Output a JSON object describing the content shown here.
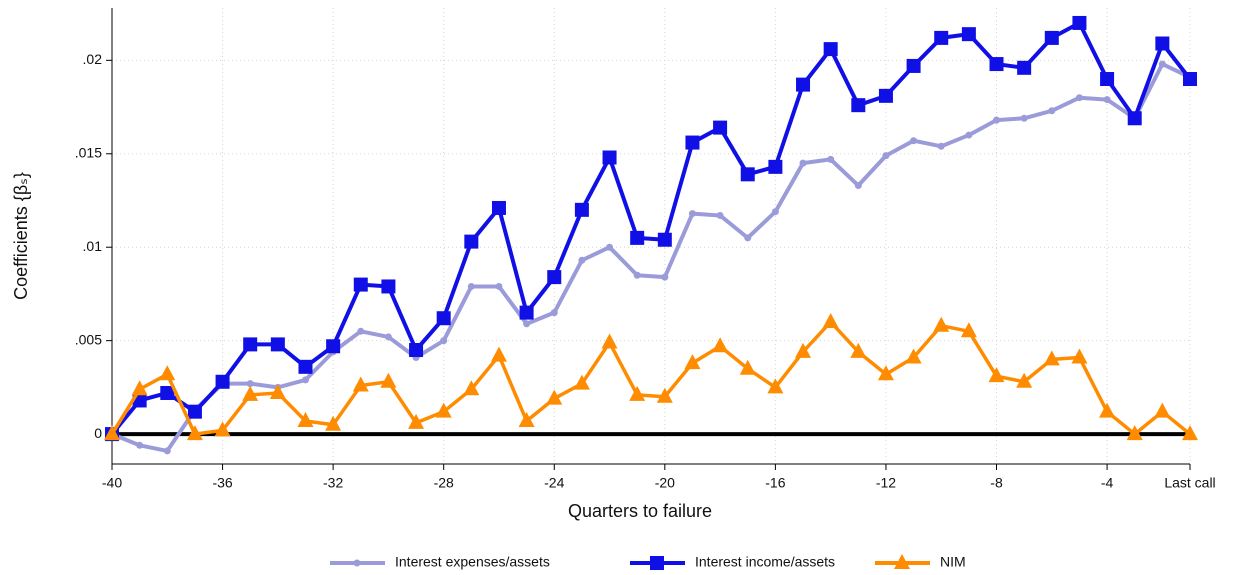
{
  "chart_data": {
    "type": "line",
    "xlabel": "Quarters to failure",
    "ylabel": "Coefficients {βₛ}",
    "x": [
      -40,
      -39,
      -38,
      -37,
      -36,
      -35,
      -34,
      -33,
      -32,
      -31,
      -30,
      -29,
      -28,
      -27,
      -26,
      -25,
      -24,
      -23,
      -22,
      -21,
      -20,
      -19,
      -18,
      -17,
      -16,
      -15,
      -14,
      -13,
      -12,
      -11,
      -10,
      -9,
      -8,
      -7,
      -6,
      -5,
      -4,
      -3,
      -2,
      -1
    ],
    "xlim": [
      -40,
      -1
    ],
    "xticks": [
      -40,
      -36,
      -32,
      -28,
      -24,
      -20,
      -16,
      -12,
      -8,
      -4,
      {
        "value": -1,
        "label": "Last call"
      }
    ],
    "ylim": [
      -0.0016,
      0.0228
    ],
    "yticks": [
      0,
      {
        "value": 0.005,
        "label": ".005"
      },
      {
        "value": 0.01,
        "label": ".01"
      },
      {
        "value": 0.015,
        "label": ".015"
      },
      {
        "value": 0.02,
        "label": ".02"
      }
    ],
    "grid": true,
    "legend": "bottom",
    "series": [
      {
        "name": "Interest expenses/assets",
        "color": "#9b9bd9",
        "marker": "circle",
        "values": [
          0,
          -0.0006,
          -0.0009,
          0.0013,
          0.0027,
          0.0027,
          0.0025,
          0.0029,
          0.0044,
          0.0055,
          0.0052,
          0.0041,
          0.005,
          0.0079,
          0.0079,
          0.0059,
          0.0065,
          0.0093,
          0.01,
          0.0085,
          0.0084,
          0.0118,
          0.0117,
          0.0105,
          0.0119,
          0.0145,
          0.0147,
          0.0133,
          0.0149,
          0.0157,
          0.0154,
          0.016,
          0.0168,
          0.0169,
          0.0173,
          0.018,
          0.0179,
          0.0169,
          0.0198,
          0.0191
        ]
      },
      {
        "name": "Interest income/assets",
        "color": "#1010e6",
        "marker": "square",
        "values": [
          0,
          0.0018,
          0.0022,
          0.0012,
          0.0028,
          0.0048,
          0.0048,
          0.0036,
          0.0047,
          0.008,
          0.0079,
          0.0045,
          0.0062,
          0.0103,
          0.0121,
          0.0065,
          0.0084,
          0.012,
          0.0148,
          0.0105,
          0.0104,
          0.0156,
          0.0164,
          0.0139,
          0.0143,
          0.0187,
          0.0206,
          0.0176,
          0.0181,
          0.0197,
          0.0212,
          0.0214,
          0.0198,
          0.0196,
          0.0212,
          0.022,
          0.019,
          0.0169,
          0.0209,
          0.019
        ]
      },
      {
        "name": "NIM",
        "color": "#ff8c00",
        "marker": "triangle",
        "values": [
          0,
          0.0024,
          0.0032,
          0,
          0.0002,
          0.0021,
          0.0022,
          0.0007,
          0.0005,
          0.0026,
          0.0028,
          0.0006,
          0.0012,
          0.0024,
          0.0042,
          0.0007,
          0.0019,
          0.0027,
          0.0049,
          0.0021,
          0.002,
          0.0038,
          0.0047,
          0.0035,
          0.0025,
          0.0044,
          0.006,
          0.0044,
          0.0032,
          0.0041,
          0.0058,
          0.0055,
          0.0031,
          0.0028,
          0.004,
          0.0041,
          0.0012,
          0,
          0.0012,
          0
        ]
      }
    ]
  }
}
